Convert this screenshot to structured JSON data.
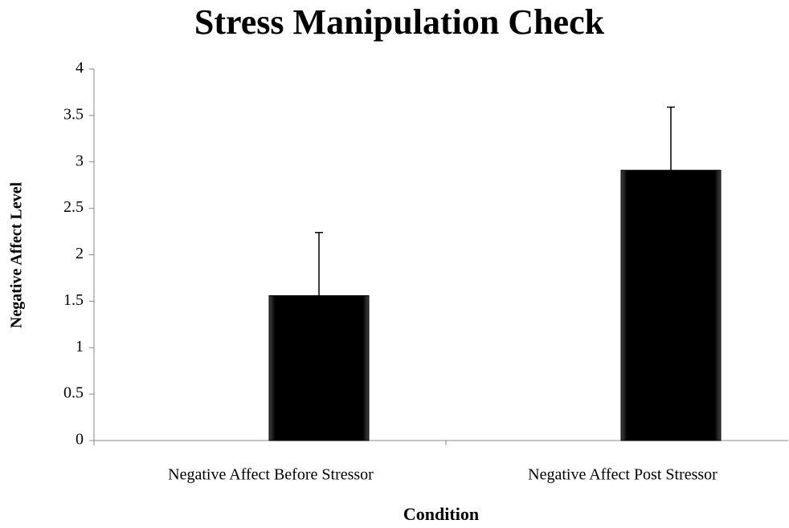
{
  "chart_data": {
    "type": "bar",
    "title": "Stress Manipulation Check",
    "x_label": "Condition",
    "y_label": "Negative Affect Level",
    "categories": [
      "Negative Affect Before Stressor",
      "Negative Affect Post Stressor"
    ],
    "values": [
      1.56,
      2.91
    ],
    "errors": [
      0.68,
      0.68
    ],
    "color": "#000000",
    "ylim": [
      0,
      4
    ],
    "yticks": [
      0,
      0.5,
      1,
      1.5,
      2,
      2.5,
      3,
      3.5,
      4
    ],
    "grid": false
  }
}
